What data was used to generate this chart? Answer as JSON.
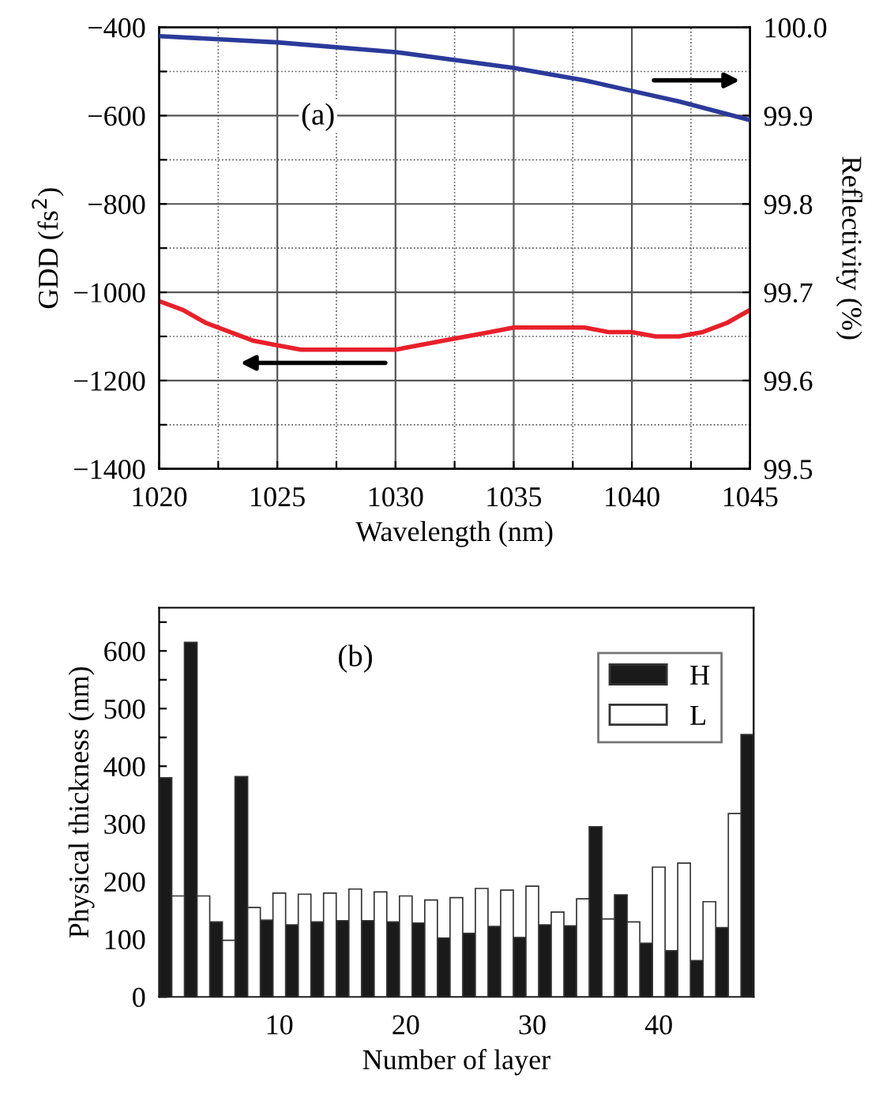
{
  "chart_data": [
    {
      "type": "line",
      "xlabel": "Wavelength (nm)",
      "ylabel": "GDD (fs$^{2}$)",
      "y2label": "Reflectivity (%)",
      "annotations": [
        "(a)"
      ],
      "xlim": [
        1020,
        1045
      ],
      "xticks": [
        1020,
        {
          "value": 1022.5,
          "label": null
        },
        1025,
        {
          "value": 1027.5,
          "label": null
        },
        1030,
        {
          "value": 1032.5,
          "label": null
        },
        1035,
        {
          "value": 1037.5,
          "label": null
        },
        1040,
        {
          "value": 1042.5,
          "label": null
        },
        1045
      ],
      "ylim": [
        -1400,
        -400
      ],
      "yticks": [
        {
          "value": -1400,
          "label": "−1400"
        },
        {
          "value": -1300,
          "label": null
        },
        {
          "value": -1200,
          "label": "−1200"
        },
        {
          "value": -1100,
          "label": null
        },
        {
          "value": -1000,
          "label": "−1000"
        },
        {
          "value": -900,
          "label": null
        },
        {
          "value": -800,
          "label": "−800"
        },
        {
          "value": -700,
          "label": null
        },
        {
          "value": -600,
          "label": "−600"
        },
        {
          "value": -500,
          "label": null
        },
        {
          "value": -400,
          "label": "−400"
        }
      ],
      "y2lim": [
        99.5,
        100.0
      ],
      "y2ticks": [
        {
          "value": 99.5,
          "label": "99.5"
        },
        {
          "value": 99.6,
          "label": "99.6"
        },
        {
          "value": 99.7,
          "label": "99.7"
        },
        {
          "value": 99.8,
          "label": "99.8"
        },
        {
          "value": 99.9,
          "label": "99.9"
        },
        {
          "value": 100.0,
          "label": "100.0"
        }
      ],
      "grid": true,
      "legend": false,
      "series": [
        {
          "color": "#e8202a",
          "axis": "y",
          "x": [
            1020,
            1021,
            1022,
            1023,
            1024,
            1025,
            1026,
            1028,
            1030,
            1032,
            1034,
            1035,
            1036,
            1038,
            1039,
            1040,
            1041,
            1042,
            1043,
            1044,
            1045
          ],
          "values": [
            -1020,
            -1040,
            -1070,
            -1090,
            -1110,
            -1120,
            -1130,
            -1130,
            -1130,
            -1110,
            -1090,
            -1080,
            -1080,
            -1080,
            -1090,
            -1090,
            -1100,
            -1100,
            -1090,
            -1070,
            -1040
          ]
        },
        {
          "color": "#2b3a9a",
          "axis": "y2",
          "x": [
            1020,
            1025,
            1030,
            1035,
            1038,
            1040,
            1042,
            1045
          ],
          "values": [
            99.99,
            99.983,
            99.972,
            99.954,
            99.94,
            99.928,
            99.916,
            99.895
          ]
        }
      ]
    },
    {
      "type": "bar",
      "xlabel": "Number of layer",
      "ylabel": "Physical thickness (nm)",
      "annotations": [
        "(b)"
      ],
      "xlim": [
        0.5,
        47.5
      ],
      "xticks": [
        {
          "value": 5,
          "label": null
        },
        10,
        {
          "value": 15,
          "label": null
        },
        20,
        {
          "value": 25,
          "label": null
        },
        30,
        {
          "value": 35,
          "label": null
        },
        40,
        {
          "value": 45,
          "label": null
        }
      ],
      "ylim": [
        0,
        675
      ],
      "yticks": [
        0,
        {
          "value": 50,
          "label": null
        },
        100,
        {
          "value": 150,
          "label": null
        },
        200,
        {
          "value": 250,
          "label": null
        },
        300,
        {
          "value": 350,
          "label": null
        },
        400,
        {
          "value": 450,
          "label": null
        },
        500,
        {
          "value": 550,
          "label": null
        },
        600,
        {
          "value": 650,
          "label": null
        }
      ],
      "grid": false,
      "legend": "top right",
      "series": [
        {
          "name": "H",
          "color": "#1a1a1a",
          "x": [
            1,
            3,
            5,
            7,
            9,
            11,
            13,
            15,
            17,
            19,
            21,
            23,
            25,
            27,
            29,
            31,
            33,
            35,
            37,
            39,
            41,
            43,
            45,
            47
          ],
          "values": [
            380,
            615,
            130,
            382,
            133,
            125,
            130,
            132,
            132,
            130,
            128,
            102,
            110,
            122,
            103,
            125,
            123,
            295,
            177,
            93,
            80,
            63,
            120,
            455
          ]
        },
        {
          "name": "L",
          "color": "#ffffff",
          "x": [
            2,
            4,
            6,
            8,
            10,
            12,
            14,
            16,
            18,
            20,
            22,
            24,
            26,
            28,
            30,
            32,
            34,
            36,
            38,
            40,
            42,
            44,
            46
          ],
          "values": [
            175,
            175,
            98,
            155,
            180,
            178,
            180,
            187,
            182,
            175,
            168,
            172,
            188,
            185,
            192,
            147,
            170,
            135,
            130,
            225,
            232,
            165,
            318
          ]
        }
      ]
    }
  ]
}
